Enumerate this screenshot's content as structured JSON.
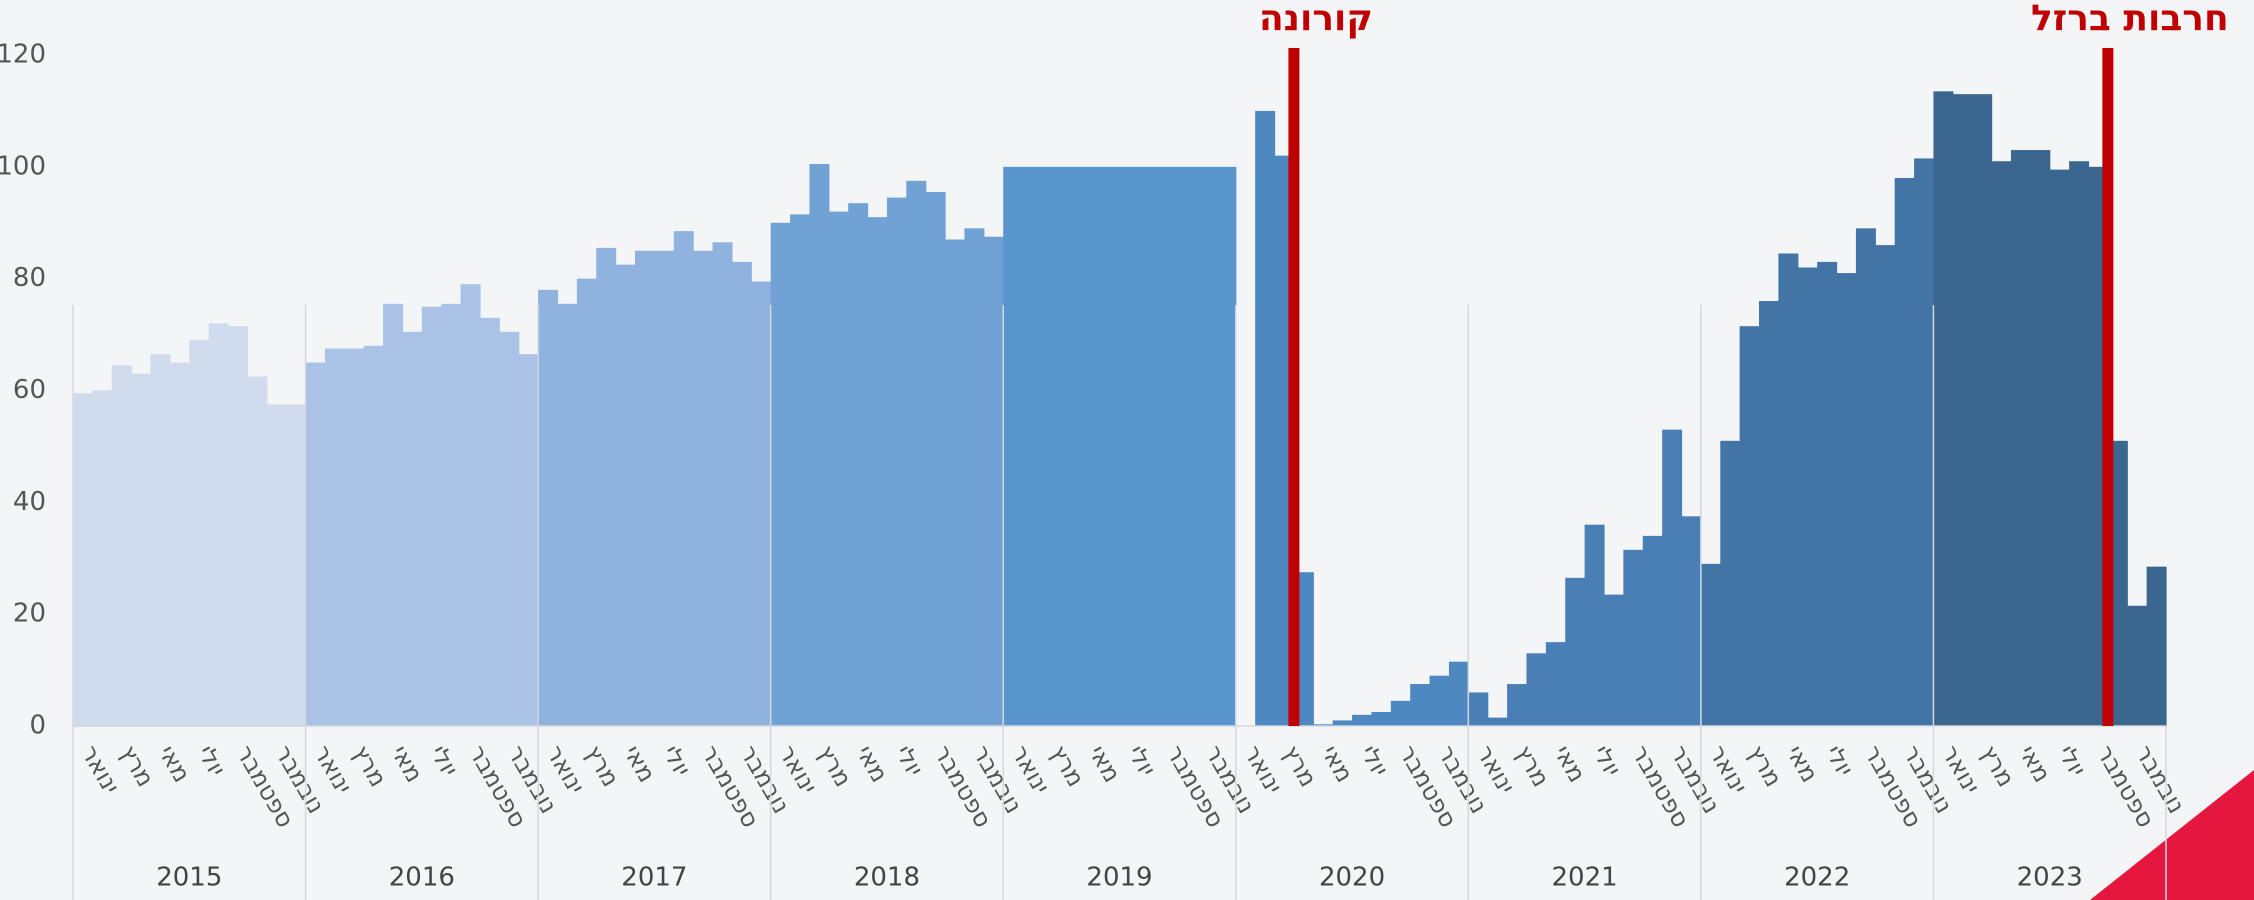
{
  "chart_data": {
    "type": "bar",
    "ylim": [
      0,
      120
    ],
    "yticks": [
      0,
      20,
      40,
      60,
      80,
      100,
      120
    ],
    "grid": false,
    "groups": [
      {
        "name": "2015",
        "color": "#d0dcee",
        "categories": [
          "ינואר",
          null,
          "מרץ",
          null,
          "מאי",
          null,
          "יולי",
          null,
          "ספטמבר",
          null,
          "נובמבר",
          null
        ],
        "values": [
          59.5,
          60,
          64.5,
          63,
          66.5,
          65,
          69,
          72,
          71.5,
          62.5,
          57.5,
          57.5
        ]
      },
      {
        "name": "2016",
        "color": "#a9c2e5",
        "categories": [
          "ינואר",
          null,
          "מרץ",
          null,
          "מאי",
          null,
          "יולי",
          null,
          "ספטמבר",
          null,
          "נובמבר",
          null
        ],
        "values": [
          65,
          67.5,
          67.5,
          68,
          75.5,
          70.5,
          75,
          75.5,
          79,
          73,
          70.5,
          66.5
        ]
      },
      {
        "name": "2017",
        "color": "#8fb2de",
        "categories": [
          "ינואר",
          null,
          "מרץ",
          null,
          "מאי",
          null,
          "יולי",
          null,
          "ספטמבר",
          null,
          "נובמבר",
          null
        ],
        "values": [
          78,
          75.5,
          80,
          85.5,
          82.5,
          85,
          85,
          88.5,
          85,
          86.5,
          83,
          79.5
        ]
      },
      {
        "name": "2018",
        "color": "#70a2d6",
        "categories": [
          "ינואר",
          null,
          "מרץ",
          null,
          "מאי",
          null,
          "יולי",
          null,
          "ספטמבר",
          null,
          "נובמבר",
          null
        ],
        "values": [
          90,
          91.5,
          100.5,
          92,
          93.5,
          91,
          94.5,
          97.5,
          95.5,
          87,
          89,
          87.5
        ]
      },
      {
        "name": "2019",
        "color": "#5996ce",
        "categories": [
          "ינואר",
          null,
          "מרץ",
          null,
          "מאי",
          null,
          "יולי",
          null,
          "ספטמבר",
          null,
          "נובמבר",
          null
        ],
        "values": [
          100,
          100,
          100,
          100,
          100,
          100,
          100,
          100,
          100,
          100,
          100,
          100
        ]
      },
      {
        "name": "2020",
        "color": "#4e88c1",
        "categories": [
          "ינואר",
          null,
          "מרץ",
          null,
          "מאי",
          null,
          "יולי",
          null,
          "ספטמבר",
          null,
          "נובמבר",
          null
        ],
        "values": [
          null,
          110,
          102,
          27.5,
          0.3,
          1,
          2,
          2.5,
          4.5,
          7.5,
          9,
          11.5
        ]
      },
      {
        "name": "2021",
        "color": "#4a7fb5",
        "categories": [
          "ינואר",
          null,
          "מרץ",
          null,
          "מאי",
          null,
          "יולי",
          null,
          "ספטמבר",
          null,
          "נובמבר",
          null
        ],
        "values": [
          6,
          1.5,
          7.5,
          13,
          15,
          26.5,
          36,
          23.5,
          31.5,
          34,
          53,
          37.5
        ]
      },
      {
        "name": "2022",
        "color": "#4274a6",
        "categories": [
          "ינואר",
          null,
          "מרץ",
          null,
          "מאי",
          null,
          "יולי",
          null,
          "ספטמבר",
          null,
          "נובמבר",
          null
        ],
        "values": [
          29,
          51,
          71.5,
          76,
          84.5,
          82,
          83,
          81,
          89,
          86,
          98,
          101.5
        ]
      },
      {
        "name": "2023",
        "color": "#3b6690",
        "categories": [
          "ינואר",
          null,
          "מרץ",
          null,
          "מאי",
          null,
          "יולי",
          null,
          "ספטמבר",
          null,
          "נובמבר",
          null
        ],
        "values": [
          113.5,
          113,
          113,
          101,
          103,
          103,
          99.5,
          101,
          100,
          51,
          21.5,
          28.5
        ]
      }
    ],
    "annotations": [
      {
        "text": "קורונה",
        "group": 5,
        "month": 3,
        "color": "#c00000"
      },
      {
        "text": "חרבות ברזל",
        "group": 8,
        "month": 9,
        "color": "#c00000"
      }
    ]
  }
}
